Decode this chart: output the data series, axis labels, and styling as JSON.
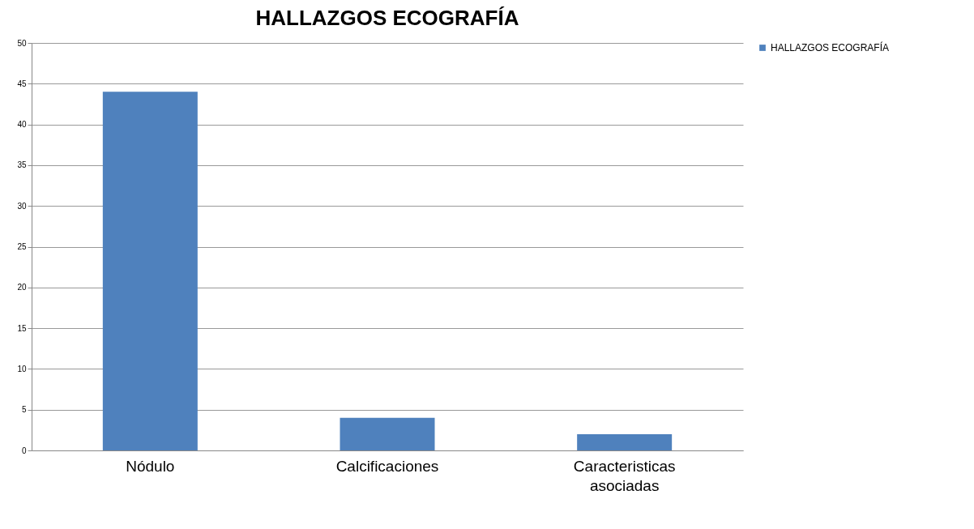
{
  "chart_data": {
    "type": "bar",
    "title": "HALLAZGOS ECOGRAFÍA",
    "categories": [
      "Nódulo",
      "Calcificaciones",
      "Caracteristicas asociadas"
    ],
    "series": [
      {
        "name": "HALLAZGOS ECOGRAFÍA",
        "color": "#4f81bd",
        "values": [
          44,
          4,
          2
        ]
      }
    ],
    "ylim": [
      0,
      50
    ],
    "yticks": [
      0,
      5,
      10,
      15,
      20,
      25,
      30,
      35,
      40,
      45,
      50
    ],
    "grid": "y",
    "legend": "right"
  }
}
